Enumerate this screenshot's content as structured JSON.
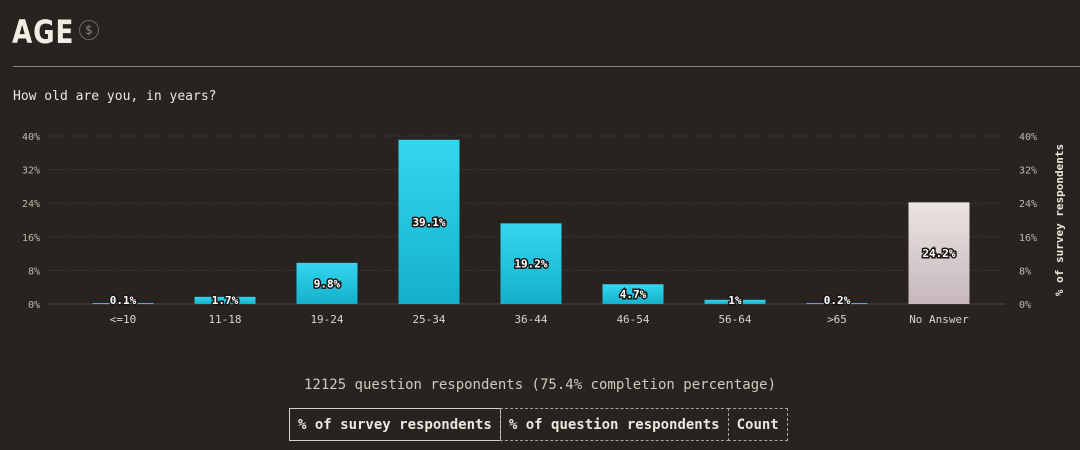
{
  "header": {
    "title": "AGE",
    "badge_icon": "dollar-circle-icon",
    "badge_symbol": "$"
  },
  "question": "How old are you, in years?",
  "chart_data": {
    "type": "bar",
    "categories": [
      "<=10",
      "11-18",
      "19-24",
      "25-34",
      "36-44",
      "46-54",
      "56-64",
      ">65",
      "No Answer"
    ],
    "values": [
      0.1,
      1.7,
      9.8,
      39.1,
      19.2,
      4.7,
      1,
      0.2,
      24.2
    ],
    "value_labels": [
      "0.1%",
      "1.7%",
      "9.8%",
      "39.1%",
      "19.2%",
      "4.7%",
      "1%",
      "0.2%",
      "24.2%"
    ],
    "y_ticks": [
      "0%",
      "8%",
      "16%",
      "24%",
      "32%",
      "40%"
    ],
    "ylim": [
      0,
      40
    ],
    "ylabel_right": "% of survey respondents",
    "colors": {
      "bar": "#29cbe6",
      "bar_no_answer": "#e4dcdc"
    }
  },
  "footer": {
    "summary": "12125 question respondents (75.4% completion percentage)"
  },
  "toggles": [
    {
      "label": "% of survey respondents",
      "active": true
    },
    {
      "label": "% of question respondents",
      "active": false
    },
    {
      "label": "Count",
      "active": false
    }
  ]
}
